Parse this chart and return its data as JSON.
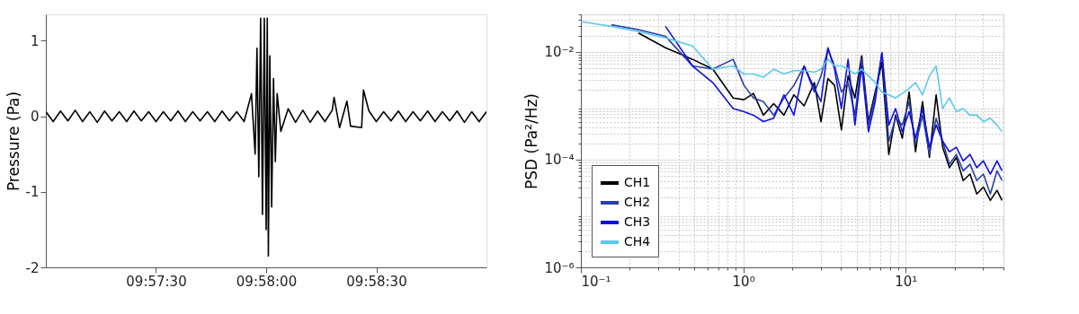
{
  "chart_data": [
    {
      "type": "line",
      "ylabel": "Pressure (Pa)",
      "color": "#000000",
      "x": [
        9.95,
        9.950556,
        9.951111,
        9.951667,
        9.952222,
        9.952778,
        9.953333,
        9.953889,
        9.954444,
        9.955,
        9.955556,
        9.956111,
        9.956667,
        9.957222,
        9.957778,
        9.958333,
        9.958889,
        9.959444,
        9.96,
        9.960556,
        9.961111,
        9.961667,
        9.962222,
        9.962778,
        9.963333,
        9.963889,
        9.964444,
        9.965,
        9.965556,
        9.965833,
        9.965972,
        9.966111,
        9.96625,
        9.966389,
        9.966528,
        9.966667,
        9.96675,
        9.966833,
        9.966944,
        9.967083,
        9.967222,
        9.967361,
        9.9675,
        9.967778,
        9.968333,
        9.968889,
        9.969444,
        9.97,
        9.970556,
        9.971111,
        9.971667,
        9.971806,
        9.972222,
        9.972778,
        9.973056,
        9.973889,
        9.974028,
        9.974444,
        9.975,
        9.975556,
        9.976111,
        9.976667,
        9.977222,
        9.977778,
        9.978333,
        9.978889,
        9.979444,
        9.98,
        9.980556,
        9.981111,
        9.981667,
        9.982222,
        9.982778,
        9.983333
      ],
      "values": [
        0.06,
        -0.07,
        0.07,
        -0.06,
        0.08,
        -0.07,
        0.06,
        -0.08,
        0.07,
        -0.06,
        0.06,
        -0.07,
        0.07,
        -0.06,
        0.06,
        -0.07,
        0.06,
        -0.06,
        0.07,
        -0.07,
        0.06,
        -0.06,
        0.06,
        -0.07,
        0.07,
        -0.06,
        0.06,
        -0.07,
        0.3,
        -0.5,
        0.9,
        -0.8,
        1.3,
        -1.3,
        1.3,
        -1.5,
        1.3,
        -1.85,
        0.8,
        -1.2,
        0.5,
        -0.6,
        0.3,
        -0.2,
        0.1,
        -0.08,
        0.08,
        -0.08,
        0.07,
        -0.07,
        0.08,
        0.25,
        -0.15,
        0.2,
        -0.13,
        -0.15,
        0.35,
        0.07,
        -0.07,
        0.06,
        -0.06,
        0.07,
        -0.07,
        0.06,
        -0.06,
        0.07,
        -0.07,
        0.06,
        -0.06,
        0.07,
        -0.08,
        0.06,
        -0.07,
        0.06
      ],
      "xlim": [
        9.95,
        9.983333
      ],
      "xticks": [
        {
          "value": 9.958333,
          "label": "09:57:30"
        },
        {
          "value": 9.966667,
          "label": "09:58:00"
        },
        {
          "value": 9.975,
          "label": "09:58:30"
        }
      ],
      "ylim": [
        -2,
        1.35
      ],
      "yticks": [
        -2,
        -1,
        0,
        1
      ],
      "grid": false,
      "legend": false,
      "line_style": "solid"
    },
    {
      "type": "line",
      "ylabel": "PSD (Pa²/Hz)",
      "log": "xy",
      "grid": true,
      "legend": "bottom left",
      "line_style": "solid",
      "x": [
        0.1,
        0.154,
        0.226,
        0.332,
        0.487,
        0.649,
        0.866,
        1.01,
        1.155,
        1.33,
        1.54,
        1.78,
        2.05,
        2.37,
        2.74,
        3.01,
        3.32,
        3.65,
        4.02,
        4.42,
        4.87,
        5.36,
        5.9,
        6.49,
        7.14,
        7.87,
        8.66,
        9.53,
        10.5,
        11.5,
        12.7,
        14.0,
        15.4,
        16.9,
        18.6,
        20.5,
        22.6,
        24.9,
        27.4,
        30.1,
        33.2,
        36.5,
        39.2
      ],
      "series": [
        {
          "name": "CH1",
          "color": "#000000",
          "values": [
            null,
            null,
            0.0226,
            0.012,
            0.0073,
            0.0048,
            0.0014,
            0.0013,
            0.0017,
            0.00067,
            0.0011,
            0.00067,
            0.0016,
            0.001,
            0.0027,
            0.00051,
            0.0032,
            0.0024,
            0.00036,
            0.0036,
            0.0014,
            0.0085,
            0.00051,
            0.0018,
            0.0064,
            0.000125,
            0.00067,
            0.00025,
            0.0018,
            0.00014,
            0.0012,
            0.00011,
            0.0016,
            0.00017,
            7.1e-05,
            0.00011,
            4.1e-05,
            5.4e-05,
            2.3e-05,
            3.1e-05,
            1.75e-05,
            2.7e-05,
            1.75e-05
          ]
        },
        {
          "name": "CH2",
          "color": "#2a3fa8",
          "values": [
            null,
            0.032,
            0.026,
            0.0196,
            0.0055,
            0.0048,
            0.0073,
            0.0024,
            0.0014,
            0.0012,
            0.00067,
            0.0014,
            0.0024,
            0.0055,
            0.0018,
            0.0036,
            0.0112,
            0.0055,
            0.0018,
            0.0027,
            0.00067,
            0.0073,
            0.00044,
            0.0015,
            0.0097,
            0.00022,
            0.00059,
            0.00044,
            0.0012,
            0.00019,
            0.00067,
            0.000125,
            0.00059,
            0.00022,
            8.2e-05,
            0.000125,
            6.2e-05,
            8.2e-05,
            4.1e-05,
            5.4e-05,
            2.3e-05,
            6.2e-05,
            4.1e-05
          ]
        },
        {
          "name": "CH3",
          "color": "#1010e0",
          "values": [
            null,
            null,
            null,
            0.0299,
            0.0055,
            0.0027,
            0.00089,
            0.00078,
            0.00067,
            0.00051,
            0.00059,
            0.0016,
            0.00067,
            0.0055,
            0.0021,
            0.0012,
            0.012,
            0.0048,
            0.00089,
            0.0073,
            0.00044,
            0.0055,
            0.00033,
            0.0012,
            0.0097,
            0.00044,
            0.00089,
            0.00033,
            0.00078,
            0.00025,
            0.00089,
            0.00017,
            0.00044,
            0.00022,
            0.00014,
            0.00017,
            9.5e-05,
            0.000125,
            7.1e-05,
            9.5e-05,
            5.4e-05,
            9.5e-05,
            6.2e-05
          ]
        },
        {
          "name": "CH4",
          "color": "#5cc8ee",
          "values": [
            0.0369,
            0.0299,
            0.024,
            0.0183,
            0.0129,
            0.0048,
            0.0055,
            0.0039,
            0.0039,
            0.0034,
            0.0048,
            0.0039,
            0.0045,
            0.0045,
            0.0042,
            0.0048,
            0.0073,
            0.0055,
            0.0055,
            0.0048,
            0.0039,
            0.0048,
            0.0036,
            0.0027,
            0.0018,
            0.0016,
            0.0014,
            0.0017,
            0.0021,
            0.0027,
            0.0016,
            0.0036,
            0.0055,
            0.00089,
            0.0014,
            0.00078,
            0.00089,
            0.00067,
            0.00067,
            0.00051,
            0.00059,
            0.00044,
            0.00033
          ]
        }
      ],
      "xlim": [
        0.1,
        40
      ],
      "xticks": [
        {
          "value": 0.1,
          "label": "10⁻¹"
        },
        {
          "value": 1,
          "label": "10⁰"
        },
        {
          "value": 10,
          "label": "10¹"
        }
      ],
      "ylim": [
        1e-06,
        0.05
      ],
      "yticks": [
        {
          "value": 1e-06,
          "label": "10⁻⁶"
        },
        {
          "value": 0.0001,
          "label": "10⁻⁴"
        },
        {
          "value": 0.01,
          "label": "10⁻²"
        }
      ]
    }
  ]
}
